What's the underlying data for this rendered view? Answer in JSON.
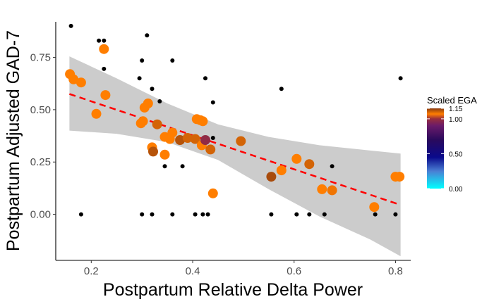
{
  "chart_data": {
    "type": "scatter",
    "xlabel": "Postpartum Relative Delta Power",
    "ylabel": "Postpartum Adjusted GAD-7",
    "xlim": [
      0.13,
      0.83
    ],
    "ylim": [
      -0.22,
      0.92
    ],
    "x_ticks": [
      0.2,
      0.4,
      0.6,
      0.8
    ],
    "x_tick_labels": [
      "0.2",
      "0.4",
      "0.6",
      "0.8"
    ],
    "y_ticks": [
      0.0,
      0.25,
      0.5,
      0.75
    ],
    "y_tick_labels": [
      "0.00",
      "0.25",
      "0.50",
      "0.75"
    ],
    "grid": false,
    "fit_line": {
      "style": "dashed",
      "color": "#ff0000",
      "x": [
        0.157,
        0.81
      ],
      "y": [
        0.575,
        0.045
      ]
    },
    "confidence_band": {
      "color": "#cccccc",
      "x": [
        0.157,
        0.25,
        0.35,
        0.45,
        0.55,
        0.65,
        0.75,
        0.81
      ],
      "upper": [
        0.755,
        0.65,
        0.53,
        0.43,
        0.37,
        0.33,
        0.305,
        0.29
      ],
      "lower": [
        0.4,
        0.385,
        0.345,
        0.26,
        0.12,
        -0.01,
        -0.12,
        -0.2
      ]
    },
    "legend": {
      "title": "Scaled EGA",
      "placement": "right",
      "ticks": [
        0.0,
        0.5,
        1.0,
        1.15
      ],
      "tick_labels": [
        "0.00",
        "0.50",
        "1.00",
        "1.15"
      ],
      "gradient": [
        {
          "value": 0.0,
          "color": "#00ffff"
        },
        {
          "value": 0.25,
          "color": "#4a7fd4"
        },
        {
          "value": 0.45,
          "color": "#0a0a8c"
        },
        {
          "value": 0.7,
          "color": "#2a0a5c"
        },
        {
          "value": 0.9,
          "color": "#6a1b6a"
        },
        {
          "value": 1.0,
          "color": "#9a2e3c"
        },
        {
          "value": 1.07,
          "color": "#ff7e00"
        },
        {
          "value": 1.15,
          "color": "#8b3a0f"
        }
      ]
    },
    "small_points": {
      "color": "#000000",
      "points": [
        [
          0.16,
          0.9
        ],
        [
          0.215,
          0.83
        ],
        [
          0.225,
          0.83
        ],
        [
          0.225,
          0.695
        ],
        [
          0.18,
          0.0
        ],
        [
          0.31,
          0.855
        ],
        [
          0.3,
          0.735
        ],
        [
          0.36,
          0.735
        ],
        [
          0.295,
          0.65
        ],
        [
          0.32,
          0.6
        ],
        [
          0.335,
          0.54
        ],
        [
          0.345,
          0.23
        ],
        [
          0.38,
          0.23
        ],
        [
          0.425,
          0.65
        ],
        [
          0.44,
          0.535
        ],
        [
          0.44,
          0.365
        ],
        [
          0.575,
          0.6
        ],
        [
          0.675,
          0.23
        ],
        [
          0.81,
          0.65
        ],
        [
          0.3,
          0.0
        ],
        [
          0.32,
          0.0
        ],
        [
          0.36,
          0.0
        ],
        [
          0.405,
          0.0
        ],
        [
          0.42,
          0.0
        ],
        [
          0.43,
          0.0
        ],
        [
          0.495,
          0.36
        ],
        [
          0.555,
          0.0
        ],
        [
          0.605,
          0.0
        ],
        [
          0.63,
          0.0
        ],
        [
          0.66,
          0.0
        ],
        [
          0.76,
          0.0
        ],
        [
          0.8,
          0.0
        ]
      ]
    },
    "series": [
      {
        "values": [
          [
            0.158,
            0.67,
            1.07
          ],
          [
            0.165,
            0.645,
            1.07
          ],
          [
            0.18,
            0.63,
            1.07
          ],
          [
            0.225,
            0.79,
            1.07
          ],
          [
            0.228,
            0.57,
            1.07
          ],
          [
            0.21,
            0.48,
            1.07
          ],
          [
            0.298,
            0.435,
            1.07
          ],
          [
            0.302,
            0.445,
            1.07
          ],
          [
            0.305,
            0.51,
            1.07
          ],
          [
            0.312,
            0.53,
            1.07
          ],
          [
            0.32,
            0.32,
            1.07
          ],
          [
            0.33,
            0.43,
            1.1
          ],
          [
            0.322,
            0.3,
            1.12
          ],
          [
            0.345,
            0.37,
            1.07
          ],
          [
            0.345,
            0.285,
            1.07
          ],
          [
            0.355,
            0.36,
            1.07
          ],
          [
            0.36,
            0.39,
            1.07
          ],
          [
            0.375,
            0.355,
            1.12
          ],
          [
            0.39,
            0.365,
            1.1
          ],
          [
            0.408,
            0.455,
            1.07
          ],
          [
            0.415,
            0.45,
            1.07
          ],
          [
            0.42,
            0.445,
            1.07
          ],
          [
            0.405,
            0.36,
            1.1
          ],
          [
            0.418,
            0.33,
            1.07
          ],
          [
            0.425,
            0.355,
            0.98
          ],
          [
            0.435,
            0.31,
            1.1
          ],
          [
            0.44,
            0.1,
            1.07
          ],
          [
            0.495,
            0.35,
            1.1
          ],
          [
            0.555,
            0.18,
            1.13
          ],
          [
            0.575,
            0.21,
            1.07
          ],
          [
            0.605,
            0.265,
            1.07
          ],
          [
            0.63,
            0.24,
            1.1
          ],
          [
            0.655,
            0.12,
            1.07
          ],
          [
            0.675,
            0.115,
            1.08
          ],
          [
            0.758,
            0.035,
            1.07
          ],
          [
            0.8,
            0.18,
            1.07
          ],
          [
            0.808,
            0.18,
            1.07
          ]
        ]
      }
    ]
  }
}
